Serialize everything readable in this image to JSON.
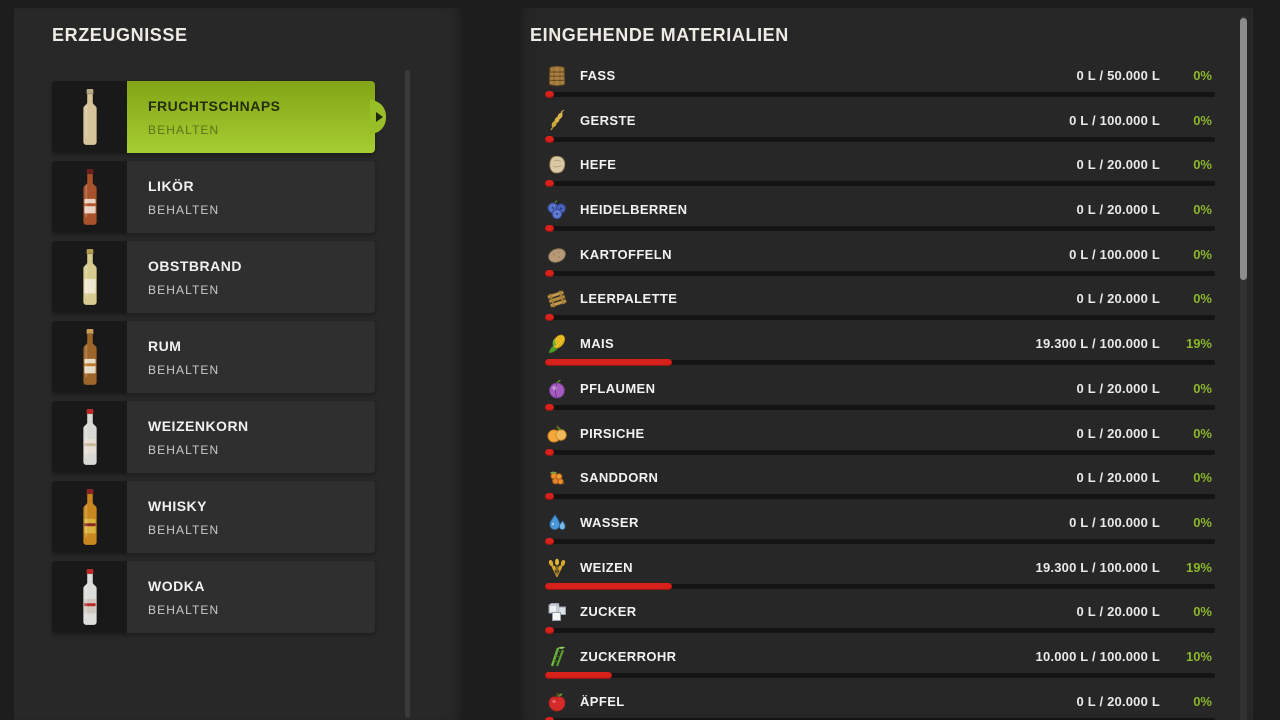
{
  "left_panel": {
    "title": "ERZEUGNISSE",
    "products": [
      {
        "name": "FRUCHTSCHNAPS",
        "mode": "BEHALTEN",
        "selected": true,
        "icon": "bottle-fruchtschnaps-icon"
      },
      {
        "name": "LIKÖR",
        "mode": "BEHALTEN",
        "selected": false,
        "icon": "bottle-likoer-icon"
      },
      {
        "name": "OBSTBRAND",
        "mode": "BEHALTEN",
        "selected": false,
        "icon": "bottle-obstbrand-icon"
      },
      {
        "name": "RUM",
        "mode": "BEHALTEN",
        "selected": false,
        "icon": "bottle-rum-icon"
      },
      {
        "name": "WEIZENKORN",
        "mode": "BEHALTEN",
        "selected": false,
        "icon": "bottle-weizenkorn-icon"
      },
      {
        "name": "WHISKY",
        "mode": "BEHALTEN",
        "selected": false,
        "icon": "bottle-whisky-icon"
      },
      {
        "name": "WODKA",
        "mode": "BEHALTEN",
        "selected": false,
        "icon": "bottle-wodka-icon"
      }
    ]
  },
  "right_panel": {
    "title": "EINGEHENDE MATERIALIEN",
    "materials": [
      {
        "name": "FASS",
        "amount": "0 L / 50.000 L",
        "percent": 0,
        "percent_label": "0%",
        "icon": "barrel-icon"
      },
      {
        "name": "GERSTE",
        "amount": "0 L / 100.000 L",
        "percent": 0,
        "percent_label": "0%",
        "icon": "barley-icon"
      },
      {
        "name": "HEFE",
        "amount": "0 L / 20.000 L",
        "percent": 0,
        "percent_label": "0%",
        "icon": "yeast-icon"
      },
      {
        "name": "HEIDELBERREN",
        "amount": "0 L / 20.000 L",
        "percent": 0,
        "percent_label": "0%",
        "icon": "blueberries-icon"
      },
      {
        "name": "KARTOFFELN",
        "amount": "0 L / 100.000 L",
        "percent": 0,
        "percent_label": "0%",
        "icon": "potato-icon"
      },
      {
        "name": "LEERPALETTE",
        "amount": "0 L / 20.000 L",
        "percent": 0,
        "percent_label": "0%",
        "icon": "pallet-icon"
      },
      {
        "name": "MAIS",
        "amount": "19.300 L / 100.000 L",
        "percent": 19,
        "percent_label": "19%",
        "icon": "corn-icon"
      },
      {
        "name": "PFLAUMEN",
        "amount": "0 L / 20.000 L",
        "percent": 0,
        "percent_label": "0%",
        "icon": "plum-icon"
      },
      {
        "name": "PIRSICHE",
        "amount": "0 L / 20.000 L",
        "percent": 0,
        "percent_label": "0%",
        "icon": "peach-icon"
      },
      {
        "name": "SANDDORN",
        "amount": "0 L / 20.000 L",
        "percent": 0,
        "percent_label": "0%",
        "icon": "seabuckthorn-icon"
      },
      {
        "name": "WASSER",
        "amount": "0 L / 100.000 L",
        "percent": 0,
        "percent_label": "0%",
        "icon": "water-icon"
      },
      {
        "name": "WEIZEN",
        "amount": "19.300 L / 100.000 L",
        "percent": 19,
        "percent_label": "19%",
        "icon": "wheat-icon"
      },
      {
        "name": "ZUCKER",
        "amount": "0 L / 20.000 L",
        "percent": 0,
        "percent_label": "0%",
        "icon": "sugar-icon"
      },
      {
        "name": "ZUCKERROHR",
        "amount": "10.000 L / 100.000 L",
        "percent": 10,
        "percent_label": "10%",
        "icon": "sugarcane-icon"
      },
      {
        "name": "ÄPFEL",
        "amount": "0 L / 20.000 L",
        "percent": 0,
        "percent_label": "0%",
        "icon": "apple-icon"
      }
    ]
  },
  "colors": {
    "accent_green": "#8ab629",
    "selected_gradient_top": "#82a416",
    "selected_gradient_bottom": "#a6cd32",
    "bar_red": "#d8211a",
    "panel_bg": "#282828"
  }
}
